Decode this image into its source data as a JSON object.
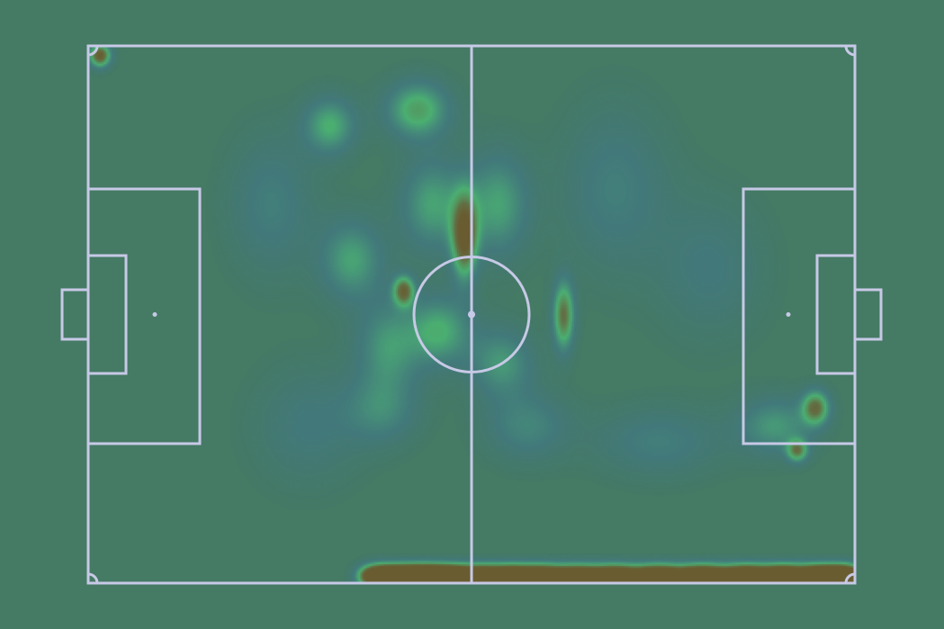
{
  "colors": {
    "background": "#457a64",
    "lines": "#c7c9e6",
    "heat_low": "#3f77a8",
    "heat_mid": "#4fd07a",
    "heat_high": "#6b6b3c",
    "heat_peak": "#6e5a2c"
  },
  "chart_data": {
    "type": "heatmap",
    "title": "",
    "xlabel": "",
    "ylabel": "",
    "pitch": {
      "length": 105,
      "width": 68,
      "units": "m"
    },
    "xlim": [
      0,
      105
    ],
    "ylim": [
      0,
      68
    ],
    "grid": false,
    "hotspots": [
      {
        "x": 1.5,
        "y": 66.9,
        "sx": 1.0,
        "sy": 1.0,
        "w": 1.0,
        "level": "high"
      },
      {
        "x": 51.4,
        "y": 44.0,
        "sx": 1.2,
        "sy": 3.6,
        "w": 1.0,
        "level": "high"
      },
      {
        "x": 43.1,
        "y": 37.1,
        "sx": 1.0,
        "sy": 1.3,
        "w": 0.85,
        "level": "high"
      },
      {
        "x": 65.0,
        "y": 34.0,
        "sx": 1.0,
        "sy": 3.0,
        "w": 0.8,
        "level": "high"
      },
      {
        "x": 99.5,
        "y": 22.3,
        "sx": 1.3,
        "sy": 1.5,
        "w": 0.8,
        "level": "high"
      },
      {
        "x": 97.0,
        "y": 16.9,
        "sx": 1.0,
        "sy": 1.0,
        "w": 0.7,
        "level": "high"
      },
      {
        "x": 45.0,
        "y": 60.0,
        "sx": 3.0,
        "sy": 2.5,
        "w": 0.6,
        "level": "mid"
      },
      {
        "x": 33.0,
        "y": 58.0,
        "sx": 2.5,
        "sy": 2.5,
        "w": 0.5,
        "level": "mid"
      },
      {
        "x": 47.0,
        "y": 48.0,
        "sx": 3.0,
        "sy": 4.0,
        "w": 0.45,
        "level": "mid"
      },
      {
        "x": 36.0,
        "y": 41.0,
        "sx": 3.0,
        "sy": 3.5,
        "w": 0.45,
        "level": "mid"
      },
      {
        "x": 56.0,
        "y": 48.0,
        "sx": 3.0,
        "sy": 4.5,
        "w": 0.45,
        "level": "mid"
      },
      {
        "x": 48.0,
        "y": 32.0,
        "sx": 3.0,
        "sy": 3.0,
        "w": 0.5,
        "level": "mid"
      },
      {
        "x": 56.5,
        "y": 28.0,
        "sx": 3.0,
        "sy": 3.0,
        "w": 0.4,
        "level": "mid"
      },
      {
        "x": 41.0,
        "y": 30.0,
        "sx": 3.0,
        "sy": 4.0,
        "w": 0.4,
        "level": "mid"
      },
      {
        "x": 94.0,
        "y": 20.0,
        "sx": 3.5,
        "sy": 2.5,
        "w": 0.4,
        "level": "mid"
      },
      {
        "x": 40.0,
        "y": 22.0,
        "sx": 3.5,
        "sy": 3.0,
        "w": 0.3,
        "level": "mid"
      },
      {
        "x": 60.0,
        "y": 20.0,
        "sx": 4.0,
        "sy": 3.0,
        "w": 0.3,
        "level": "mid"
      },
      {
        "x": 25.0,
        "y": 48.0,
        "sx": 4.0,
        "sy": 6.0,
        "w": 0.25,
        "level": "low"
      },
      {
        "x": 72.0,
        "y": 50.0,
        "sx": 5.0,
        "sy": 7.0,
        "w": 0.25,
        "level": "low"
      },
      {
        "x": 78.0,
        "y": 18.0,
        "sx": 6.0,
        "sy": 3.0,
        "w": 0.25,
        "level": "low"
      },
      {
        "x": 30.0,
        "y": 20.0,
        "sx": 5.0,
        "sy": 5.0,
        "w": 0.2,
        "level": "low"
      },
      {
        "x": 85.0,
        "y": 40.0,
        "sx": 5.0,
        "sy": 6.0,
        "w": 0.2,
        "level": "low"
      }
    ],
    "touchline_band": {
      "y": 1.0,
      "x_start": 38.0,
      "x_end": 104.5,
      "peaks": [
        {
          "x": 40.5,
          "w": 0.9
        },
        {
          "x": 44.0,
          "w": 1.0
        },
        {
          "x": 47.0,
          "w": 1.0
        },
        {
          "x": 50.0,
          "w": 0.7
        },
        {
          "x": 54.0,
          "w": 0.6
        },
        {
          "x": 58.0,
          "w": 0.7
        },
        {
          "x": 62.0,
          "w": 0.65
        },
        {
          "x": 67.0,
          "w": 0.5
        },
        {
          "x": 72.0,
          "w": 0.55
        },
        {
          "x": 78.0,
          "w": 0.6
        },
        {
          "x": 84.0,
          "w": 0.7
        },
        {
          "x": 90.0,
          "w": 0.75
        },
        {
          "x": 95.0,
          "w": 0.8
        },
        {
          "x": 100.0,
          "w": 0.85
        },
        {
          "x": 103.5,
          "w": 0.9
        }
      ]
    }
  }
}
